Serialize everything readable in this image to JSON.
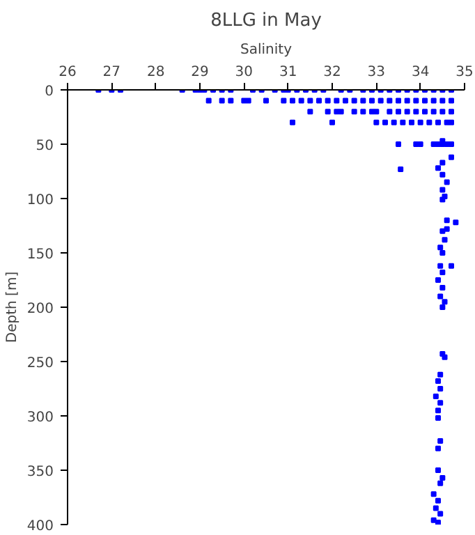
{
  "chart_data": {
    "type": "scatter",
    "title": "8LLG in May",
    "xlabel": "Salinity",
    "ylabel": "Depth [m]",
    "xlim": [
      26,
      35
    ],
    "xticks": [
      26,
      27,
      28,
      29,
      30,
      31,
      32,
      33,
      34,
      35
    ],
    "ylim": [
      400,
      0
    ],
    "yticks": [
      0,
      50,
      100,
      150,
      200,
      250,
      300,
      350,
      400
    ],
    "grid": false,
    "marker": "square",
    "series": [
      {
        "color": "#0000ff",
        "x": [
          26.7,
          27.0,
          27.2,
          28.6,
          28.9,
          29.0,
          29.1,
          29.3,
          29.5,
          29.7,
          30.2,
          30.4,
          30.7,
          30.9,
          31.0,
          31.2,
          31.4,
          31.6,
          31.8,
          32.2,
          32.4,
          32.7,
          32.9,
          33.1,
          33.3,
          33.5,
          33.7,
          33.9,
          34.1,
          34.3,
          34.5,
          34.7,
          29.2,
          29.5,
          29.7,
          30.0,
          30.1,
          30.5,
          30.9,
          31.1,
          31.3,
          31.5,
          31.7,
          31.9,
          32.1,
          32.3,
          32.5,
          32.7,
          32.9,
          33.1,
          33.3,
          33.5,
          33.7,
          33.9,
          34.1,
          34.3,
          34.5,
          34.7,
          31.5,
          31.9,
          32.1,
          32.2,
          32.5,
          32.7,
          32.9,
          33.0,
          33.3,
          33.5,
          33.7,
          33.9,
          34.1,
          34.3,
          34.5,
          34.7,
          31.1,
          32.0,
          33.0,
          33.2,
          33.4,
          33.6,
          33.8,
          34.0,
          34.2,
          34.4,
          34.6,
          34.7,
          33.5,
          33.9,
          34.0,
          34.3,
          34.4,
          34.5,
          34.6,
          34.7,
          34.5,
          34.5,
          34.7,
          34.4,
          33.55,
          34.5,
          34.6,
          34.5,
          34.55,
          34.5,
          34.6,
          34.8,
          34.6,
          34.5,
          34.55,
          34.45,
          34.5,
          34.45,
          34.7,
          34.5,
          34.4,
          34.5,
          34.45,
          34.55,
          34.5,
          34.5,
          34.55,
          34.45,
          34.4,
          34.45,
          34.35,
          34.45,
          34.4,
          34.4,
          34.45,
          34.4,
          34.4,
          34.5,
          34.45,
          34.3,
          34.4,
          34.35,
          34.45,
          34.3,
          34.4
        ],
        "values": [
          0,
          0,
          0,
          0,
          0,
          0,
          0,
          0,
          0,
          0,
          0,
          0,
          0,
          0,
          0,
          0,
          0,
          0,
          0,
          0,
          0,
          0,
          0,
          0,
          0,
          0,
          0,
          0,
          0,
          0,
          0,
          0,
          10,
          10,
          10,
          10,
          10,
          10,
          10,
          10,
          10,
          10,
          10,
          10,
          10,
          10,
          10,
          10,
          10,
          10,
          10,
          10,
          10,
          10,
          10,
          10,
          10,
          10,
          20,
          20,
          20,
          20,
          20,
          20,
          20,
          20,
          20,
          20,
          20,
          20,
          20,
          20,
          20,
          20,
          30,
          30,
          30,
          30,
          30,
          30,
          30,
          30,
          30,
          30,
          30,
          30,
          50,
          50,
          50,
          50,
          50,
          50,
          50,
          50,
          47,
          67,
          62,
          72,
          73,
          78,
          85,
          92,
          98,
          101,
          120,
          122,
          128,
          130,
          138,
          145,
          150,
          162,
          162,
          168,
          175,
          182,
          190,
          195,
          200,
          243,
          246,
          262,
          268,
          275,
          282,
          288,
          295,
          302,
          323,
          330,
          350,
          357,
          362,
          372,
          378,
          385,
          390,
          396,
          398
        ]
      }
    ]
  }
}
